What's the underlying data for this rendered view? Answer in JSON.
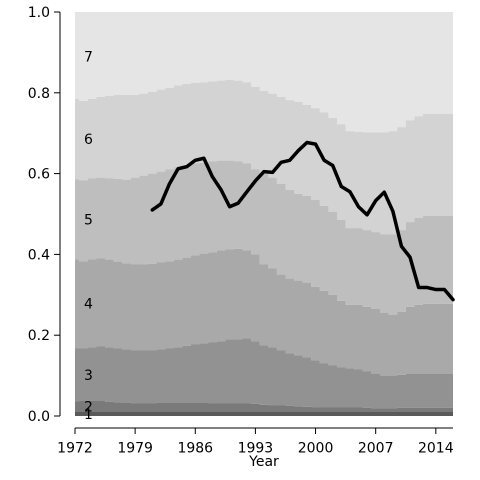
{
  "chart_data": {
    "type": "area",
    "title": "",
    "xlabel": "Year",
    "ylabel": "",
    "xlim": [
      1972,
      2016
    ],
    "ylim": [
      0,
      1
    ],
    "grid": false,
    "stacking": "cumulative",
    "x_ticks": [
      1972,
      1979,
      1986,
      1993,
      2000,
      2007,
      2014
    ],
    "x_tick_labels": [
      "1972",
      "1979",
      "1986",
      "1993",
      "2000",
      "2007",
      "2014"
    ],
    "y_ticks": [
      0,
      0.2,
      0.4,
      0.6,
      0.8,
      1.0
    ],
    "y_tick_labels": [
      "0.0",
      "0.2",
      "0.4",
      "0.6",
      "0.8",
      "1.0"
    ],
    "band_labels": [
      "1",
      "2",
      "3",
      "4",
      "5",
      "6",
      "7"
    ],
    "band_colors": [
      "#5a5a5a",
      "#7a7a7a",
      "#929292",
      "#a9a9a9",
      "#bebebe",
      "#d3d3d3",
      "#e5e5e5"
    ],
    "x": [
      1972,
      1973,
      1974,
      1975,
      1976,
      1977,
      1978,
      1979,
      1980,
      1981,
      1982,
      1983,
      1984,
      1985,
      1986,
      1987,
      1988,
      1989,
      1990,
      1991,
      1992,
      1993,
      1994,
      1995,
      1996,
      1997,
      1998,
      1999,
      2000,
      2001,
      2002,
      2003,
      2004,
      2005,
      2006,
      2007,
      2008,
      2009,
      2010,
      2011,
      2012,
      2013,
      2014,
      2015
    ],
    "cumulative_bounds": [
      {
        "name": "1",
        "values": [
          0.01,
          0.01,
          0.01,
          0.01,
          0.01,
          0.01,
          0.01,
          0.01,
          0.01,
          0.01,
          0.01,
          0.01,
          0.01,
          0.01,
          0.01,
          0.01,
          0.01,
          0.01,
          0.01,
          0.01,
          0.01,
          0.01,
          0.01,
          0.01,
          0.01,
          0.01,
          0.01,
          0.01,
          0.01,
          0.01,
          0.01,
          0.01,
          0.01,
          0.01,
          0.01,
          0.01,
          0.01,
          0.01,
          0.01,
          0.01,
          0.01,
          0.01,
          0.01,
          0.01
        ]
      },
      {
        "name": "2",
        "values": [
          0.036,
          0.037,
          0.038,
          0.038,
          0.035,
          0.034,
          0.033,
          0.032,
          0.032,
          0.032,
          0.033,
          0.033,
          0.033,
          0.033,
          0.033,
          0.033,
          0.032,
          0.032,
          0.032,
          0.032,
          0.032,
          0.03,
          0.028,
          0.027,
          0.026,
          0.025,
          0.024,
          0.023,
          0.022,
          0.021,
          0.021,
          0.021,
          0.021,
          0.021,
          0.02,
          0.019,
          0.019,
          0.019,
          0.02,
          0.02,
          0.02,
          0.02,
          0.02,
          0.02
        ]
      },
      {
        "name": "3",
        "values": [
          0.168,
          0.168,
          0.17,
          0.173,
          0.17,
          0.167,
          0.165,
          0.163,
          0.163,
          0.163,
          0.165,
          0.168,
          0.17,
          0.174,
          0.178,
          0.18,
          0.183,
          0.185,
          0.19,
          0.19,
          0.192,
          0.185,
          0.175,
          0.17,
          0.162,
          0.155,
          0.15,
          0.145,
          0.138,
          0.13,
          0.125,
          0.12,
          0.118,
          0.115,
          0.11,
          0.105,
          0.1,
          0.1,
          0.102,
          0.104,
          0.104,
          0.104,
          0.104,
          0.104
        ]
      },
      {
        "name": "4",
        "values": [
          0.388,
          0.383,
          0.388,
          0.39,
          0.387,
          0.382,
          0.378,
          0.376,
          0.375,
          0.377,
          0.38,
          0.383,
          0.387,
          0.392,
          0.398,
          0.402,
          0.405,
          0.41,
          0.412,
          0.414,
          0.41,
          0.4,
          0.375,
          0.365,
          0.35,
          0.34,
          0.335,
          0.33,
          0.32,
          0.31,
          0.3,
          0.285,
          0.275,
          0.275,
          0.27,
          0.265,
          0.255,
          0.25,
          0.258,
          0.27,
          0.275,
          0.278,
          0.278,
          0.278
        ]
      },
      {
        "name": "5",
        "values": [
          0.586,
          0.583,
          0.588,
          0.59,
          0.588,
          0.587,
          0.585,
          0.59,
          0.595,
          0.6,
          0.605,
          0.61,
          0.615,
          0.62,
          0.625,
          0.627,
          0.63,
          0.632,
          0.632,
          0.63,
          0.625,
          0.61,
          0.6,
          0.59,
          0.575,
          0.56,
          0.55,
          0.545,
          0.535,
          0.52,
          0.505,
          0.485,
          0.465,
          0.465,
          0.46,
          0.455,
          0.45,
          0.45,
          0.46,
          0.48,
          0.49,
          0.495,
          0.495,
          0.495
        ]
      },
      {
        "name": "6",
        "values": [
          0.785,
          0.78,
          0.785,
          0.79,
          0.792,
          0.795,
          0.795,
          0.795,
          0.798,
          0.802,
          0.808,
          0.812,
          0.818,
          0.822,
          0.825,
          0.826,
          0.828,
          0.83,
          0.832,
          0.83,
          0.826,
          0.815,
          0.805,
          0.798,
          0.79,
          0.782,
          0.778,
          0.77,
          0.762,
          0.752,
          0.738,
          0.722,
          0.705,
          0.703,
          0.702,
          0.702,
          0.702,
          0.705,
          0.715,
          0.732,
          0.742,
          0.748,
          0.748,
          0.748
        ]
      },
      {
        "name": "7",
        "values": [
          1,
          1,
          1,
          1,
          1,
          1,
          1,
          1,
          1,
          1,
          1,
          1,
          1,
          1,
          1,
          1,
          1,
          1,
          1,
          1,
          1,
          1,
          1,
          1,
          1,
          1,
          1,
          1,
          1,
          1,
          1,
          1,
          1,
          1,
          1,
          1,
          1,
          1,
          1,
          1,
          1,
          1,
          1,
          1
        ]
      }
    ],
    "line_series": {
      "x": [
        1981,
        1982,
        1983,
        1984,
        1985,
        1986,
        1987,
        1988,
        1989,
        1990,
        1991,
        1992,
        1993,
        1994,
        1995,
        1996,
        1997,
        1998,
        1999,
        2000,
        2001,
        2002,
        2003,
        2004,
        2005,
        2006,
        2007,
        2008,
        2009,
        2010,
        2011,
        2012,
        2013,
        2014,
        2015,
        2016
      ],
      "values": [
        0.51,
        0.525,
        0.575,
        0.612,
        0.617,
        0.633,
        0.638,
        0.592,
        0.56,
        0.518,
        0.527,
        0.555,
        0.582,
        0.605,
        0.603,
        0.628,
        0.633,
        0.657,
        0.677,
        0.673,
        0.633,
        0.62,
        0.568,
        0.555,
        0.518,
        0.498,
        0.533,
        0.554,
        0.507,
        0.42,
        0.393,
        0.318,
        0.318,
        0.313,
        0.313,
        0.288
      ]
    }
  }
}
